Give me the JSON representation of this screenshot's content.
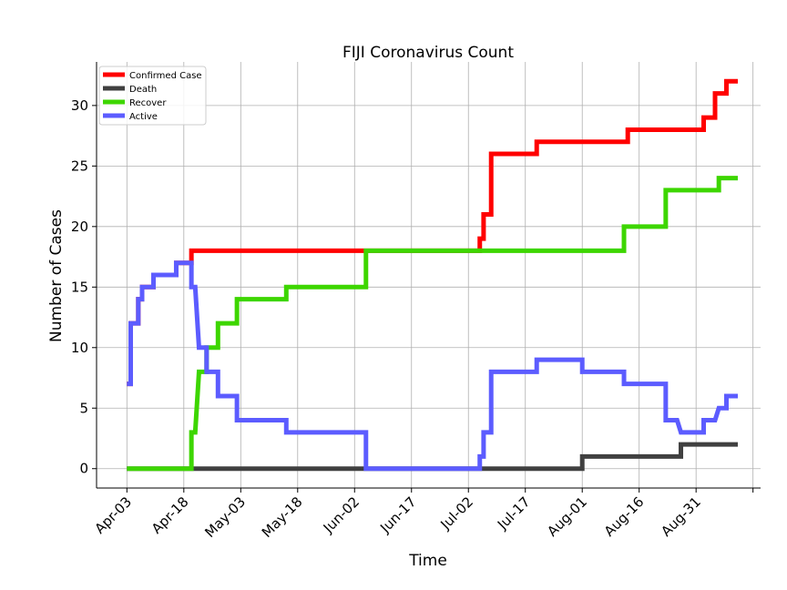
{
  "chart_data": {
    "type": "line",
    "title": "FIJI Coronavirus Count",
    "xlabel": "Time",
    "ylabel": "Number of Cases",
    "x_start": "2020-04-03",
    "xlim": [
      -8,
      167
    ],
    "ylim": [
      -1.6,
      33.6
    ],
    "y_ticks": [
      0,
      5,
      10,
      15,
      20,
      25,
      30
    ],
    "x_ticks": [
      {
        "day": 0,
        "label": "Apr-03"
      },
      {
        "day": 15,
        "label": "Apr-18"
      },
      {
        "day": 30,
        "label": "May-03"
      },
      {
        "day": 45,
        "label": "May-18"
      },
      {
        "day": 60,
        "label": "Jun-02"
      },
      {
        "day": 75,
        "label": "Jun-17"
      },
      {
        "day": 90,
        "label": "Jul-02"
      },
      {
        "day": 105,
        "label": "Jul-17"
      },
      {
        "day": 120,
        "label": "Aug-01"
      },
      {
        "day": 135,
        "label": "Aug-16"
      },
      {
        "day": 150,
        "label": "Aug-31"
      },
      {
        "day": 165,
        "label": ""
      }
    ],
    "grid": true,
    "legend_position": "top-left",
    "series": [
      {
        "name": "Confirmed Case",
        "color": "#ff0000",
        "points": [
          [
            0,
            7
          ],
          [
            1,
            7
          ],
          [
            1,
            12
          ],
          [
            3,
            12
          ],
          [
            3,
            14
          ],
          [
            4,
            14
          ],
          [
            4,
            15
          ],
          [
            7,
            15
          ],
          [
            7,
            16
          ],
          [
            13,
            16
          ],
          [
            13,
            17
          ],
          [
            17,
            17
          ],
          [
            17,
            18
          ],
          [
            93,
            18
          ],
          [
            93,
            19
          ],
          [
            94,
            19
          ],
          [
            94,
            21
          ],
          [
            96,
            21
          ],
          [
            96,
            26
          ],
          [
            108,
            26
          ],
          [
            108,
            27
          ],
          [
            132,
            27
          ],
          [
            132,
            28
          ],
          [
            152,
            28
          ],
          [
            152,
            29
          ],
          [
            155,
            29
          ],
          [
            155,
            31
          ],
          [
            158,
            31
          ],
          [
            158,
            32
          ],
          [
            161,
            32
          ]
        ]
      },
      {
        "name": "Death",
        "color": "#404040",
        "points": [
          [
            0,
            0
          ],
          [
            120,
            0
          ],
          [
            120,
            1
          ],
          [
            146,
            1
          ],
          [
            146,
            2
          ],
          [
            161,
            2
          ]
        ]
      },
      {
        "name": "Recover",
        "color": "#3dd600",
        "points": [
          [
            0,
            0
          ],
          [
            17,
            0
          ],
          [
            17,
            3
          ],
          [
            18,
            3
          ],
          [
            19,
            8
          ],
          [
            21,
            8
          ],
          [
            21,
            10
          ],
          [
            24,
            10
          ],
          [
            24,
            12
          ],
          [
            29,
            12
          ],
          [
            29,
            14
          ],
          [
            42,
            14
          ],
          [
            42,
            15
          ],
          [
            63,
            15
          ],
          [
            63,
            18
          ],
          [
            131,
            18
          ],
          [
            131,
            20
          ],
          [
            142,
            20
          ],
          [
            142,
            23
          ],
          [
            156,
            23
          ],
          [
            156,
            24
          ],
          [
            161,
            24
          ]
        ]
      },
      {
        "name": "Active",
        "color": "#5c5cff",
        "points": [
          [
            0,
            7
          ],
          [
            1,
            7
          ],
          [
            1,
            12
          ],
          [
            3,
            12
          ],
          [
            3,
            14
          ],
          [
            4,
            14
          ],
          [
            4,
            15
          ],
          [
            7,
            15
          ],
          [
            7,
            16
          ],
          [
            13,
            16
          ],
          [
            13,
            17
          ],
          [
            17,
            17
          ],
          [
            17,
            15
          ],
          [
            18,
            15
          ],
          [
            19,
            10
          ],
          [
            21,
            10
          ],
          [
            21,
            8
          ],
          [
            24,
            8
          ],
          [
            24,
            6
          ],
          [
            29,
            6
          ],
          [
            29,
            4
          ],
          [
            42,
            4
          ],
          [
            42,
            3
          ],
          [
            63,
            3
          ],
          [
            63,
            0
          ],
          [
            93,
            0
          ],
          [
            93,
            1
          ],
          [
            94,
            1
          ],
          [
            94,
            3
          ],
          [
            96,
            3
          ],
          [
            96,
            8
          ],
          [
            108,
            8
          ],
          [
            108,
            9
          ],
          [
            120,
            9
          ],
          [
            120,
            8
          ],
          [
            131,
            8
          ],
          [
            131,
            7
          ],
          [
            142,
            7
          ],
          [
            142,
            4
          ],
          [
            145,
            4
          ],
          [
            146,
            3
          ],
          [
            152,
            3
          ],
          [
            152,
            4
          ],
          [
            155,
            4
          ],
          [
            156,
            5
          ],
          [
            158,
            5
          ],
          [
            158,
            6
          ],
          [
            161,
            6
          ]
        ]
      }
    ]
  }
}
